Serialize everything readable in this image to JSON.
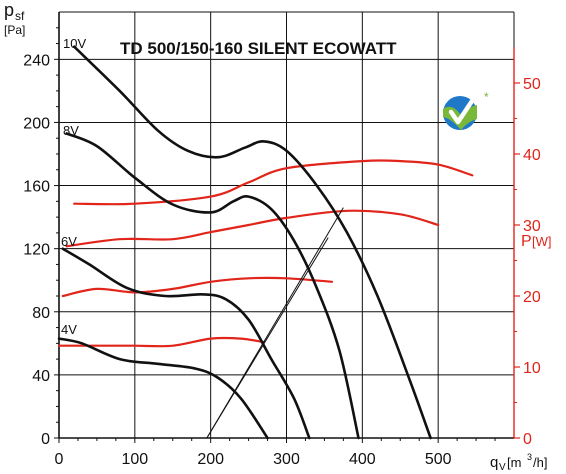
{
  "chart_data": {
    "type": "line",
    "title": "TD 500/150-160 SILENT ECOWATT",
    "y_left_label": {
      "main": "p",
      "sub": "sf",
      "unit": "[Pa]"
    },
    "y_right_label": {
      "main": "P",
      "unit": "[W]"
    },
    "x_label": {
      "main": "q",
      "sub": "V",
      "unit_pre": "[m",
      "unit_sup": "3",
      "unit_post": "/h]"
    },
    "xlim": [
      0,
      600
    ],
    "ylim_left": [
      0,
      270
    ],
    "ylim_right": [
      0,
      60
    ],
    "x_ticks": [
      "0",
      "100",
      "200",
      "300",
      "400",
      "500"
    ],
    "y_left_ticks": [
      "0",
      "40",
      "80",
      "120",
      "160",
      "200",
      "240"
    ],
    "y_right_ticks": [
      "0",
      "10",
      "20",
      "30",
      "40",
      "50"
    ],
    "pressure_series": [
      {
        "name": "10V",
        "points": [
          [
            20,
            248
          ],
          [
            80,
            220
          ],
          [
            130,
            195
          ],
          [
            170,
            182
          ],
          [
            210,
            178
          ],
          [
            245,
            184
          ],
          [
            270,
            188
          ],
          [
            300,
            182
          ],
          [
            340,
            160
          ],
          [
            380,
            130
          ],
          [
            420,
            90
          ],
          [
            460,
            40
          ],
          [
            490,
            0
          ]
        ]
      },
      {
        "name": "8V",
        "points": [
          [
            10,
            193
          ],
          [
            50,
            185
          ],
          [
            100,
            165
          ],
          [
            150,
            148
          ],
          [
            200,
            143
          ],
          [
            230,
            150
          ],
          [
            250,
            153
          ],
          [
            280,
            145
          ],
          [
            310,
            125
          ],
          [
            340,
            95
          ],
          [
            370,
            55
          ],
          [
            395,
            0
          ]
        ]
      },
      {
        "name": "6V",
        "points": [
          [
            5,
            120
          ],
          [
            40,
            110
          ],
          [
            90,
            95
          ],
          [
            140,
            90
          ],
          [
            190,
            91
          ],
          [
            220,
            88
          ],
          [
            250,
            75
          ],
          [
            280,
            50
          ],
          [
            310,
            25
          ],
          [
            330,
            0
          ]
        ]
      },
      {
        "name": "4V",
        "points": [
          [
            0,
            63
          ],
          [
            30,
            60
          ],
          [
            80,
            50
          ],
          [
            130,
            47
          ],
          [
            180,
            44
          ],
          [
            210,
            38
          ],
          [
            240,
            25
          ],
          [
            275,
            0
          ]
        ]
      }
    ],
    "power_series": [
      {
        "name": "10V",
        "points": [
          [
            20,
            33
          ],
          [
            100,
            33
          ],
          [
            200,
            34
          ],
          [
            250,
            36
          ],
          [
            300,
            38
          ],
          [
            400,
            39
          ],
          [
            450,
            39
          ],
          [
            500,
            38.5
          ],
          [
            545,
            37
          ]
        ]
      },
      {
        "name": "8V",
        "points": [
          [
            10,
            27
          ],
          [
            80,
            28
          ],
          [
            150,
            28
          ],
          [
            200,
            29
          ],
          [
            250,
            30
          ],
          [
            300,
            31
          ],
          [
            380,
            32
          ],
          [
            450,
            31.5
          ],
          [
            500,
            30
          ]
        ]
      },
      {
        "name": "6V",
        "points": [
          [
            5,
            20
          ],
          [
            50,
            21
          ],
          [
            100,
            20.5
          ],
          [
            150,
            21
          ],
          [
            200,
            22
          ],
          [
            250,
            22.5
          ],
          [
            300,
            22.5
          ],
          [
            360,
            22
          ]
        ]
      },
      {
        "name": "4V",
        "points": [
          [
            0,
            13
          ],
          [
            50,
            13
          ],
          [
            100,
            13
          ],
          [
            150,
            13
          ],
          [
            200,
            14
          ],
          [
            240,
            14
          ],
          [
            270,
            13.5
          ]
        ]
      }
    ],
    "system_lines": [
      {
        "points": [
          [
            195,
            0
          ],
          [
            375,
            146
          ]
        ]
      },
      {
        "points": [
          [
            195,
            0
          ],
          [
            355,
            127
          ]
        ]
      }
    ],
    "grid": true,
    "colors": {
      "pressure": "#111111",
      "power": "#e1251b",
      "grid": "#111111",
      "right_axis": "#e1251b",
      "logo_blue": "#1f78c8",
      "logo_green": "#7ab83a"
    },
    "logo": {
      "icon": "ecowatt-checkmark-globe-icon",
      "mark": "*"
    }
  }
}
